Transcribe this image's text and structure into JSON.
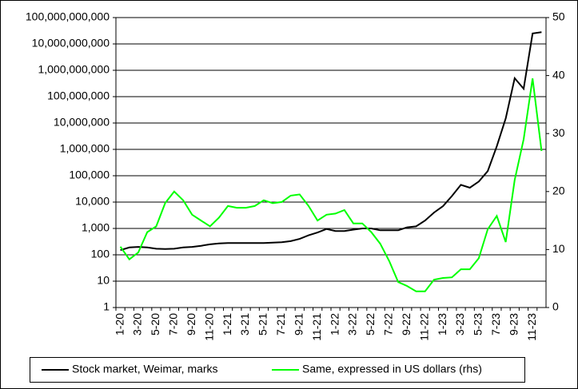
{
  "chart_data": {
    "type": "line",
    "categories": [
      "1-20",
      null,
      "3-20",
      null,
      "5-20",
      null,
      "7-20",
      null,
      "9-20",
      null,
      "11-20",
      null,
      "1-21",
      null,
      "3-21",
      null,
      "5-21",
      null,
      "7-21",
      null,
      "9-21",
      null,
      "11-21",
      null,
      "1-22",
      null,
      "3-22",
      null,
      "5-22",
      null,
      "7-22",
      null,
      "9-22",
      null,
      "11-22",
      null,
      "1-23",
      null,
      "3-23",
      null,
      "5-23",
      null,
      "7-23",
      null,
      "9-23",
      null,
      "11-23",
      null
    ],
    "series": [
      {
        "name": "Stock market, Weimar, marks",
        "color": "#000000",
        "axis": "y",
        "values": [
          150,
          190,
          200,
          190,
          170,
          165,
          170,
          190,
          200,
          220,
          250,
          270,
          280,
          280,
          280,
          280,
          280,
          290,
          300,
          330,
          400,
          550,
          700,
          950,
          800,
          800,
          900,
          1000,
          1000,
          850,
          850,
          850,
          1100,
          1200,
          2000,
          4000,
          7000,
          17000,
          45000,
          35000,
          60000,
          150000,
          1300000,
          15000000,
          500000000,
          200000000,
          25000000000,
          28000000000
        ]
      },
      {
        "name": "Same, expressed in US dollars (rhs)",
        "color": "#00ff00",
        "axis": "y2",
        "values": [
          10.5,
          8.3,
          9.5,
          13,
          14,
          18,
          20,
          18.5,
          16,
          15,
          14,
          15.5,
          17.5,
          17.2,
          17.2,
          17.5,
          18.5,
          18,
          18.2,
          19.3,
          19.5,
          17.5,
          15,
          16,
          16.2,
          16.8,
          14.5,
          14.5,
          13,
          11,
          8,
          4.4,
          3.7,
          2.8,
          2.8,
          4.8,
          5.1,
          5.2,
          6.6,
          6.6,
          8.5,
          13.5,
          15.8,
          11.3,
          22,
          29,
          39.5,
          27
        ]
      }
    ],
    "ylog": true,
    "ylim": [
      1,
      100000000000
    ],
    "yticks": [
      1,
      10,
      100,
      {
        "value": 1000,
        "label": "1,000"
      },
      {
        "value": 10000,
        "label": "10,000"
      },
      {
        "value": 100000,
        "label": "100,000"
      },
      {
        "value": 1000000,
        "label": "1,000,000"
      },
      {
        "value": 10000000,
        "label": "10,000,000"
      },
      {
        "value": 100000000,
        "label": "100,000,000"
      },
      {
        "value": 1000000000,
        "label": "1,000,000,000"
      },
      {
        "value": 10000000000,
        "label": "10,000,000,000"
      },
      {
        "value": 100000000000,
        "label": "100,000,000,000"
      }
    ],
    "y2lim": [
      0,
      50
    ],
    "y2ticks": [
      0,
      10,
      20,
      30,
      40,
      50
    ],
    "grid": true,
    "legend": "bottom"
  }
}
